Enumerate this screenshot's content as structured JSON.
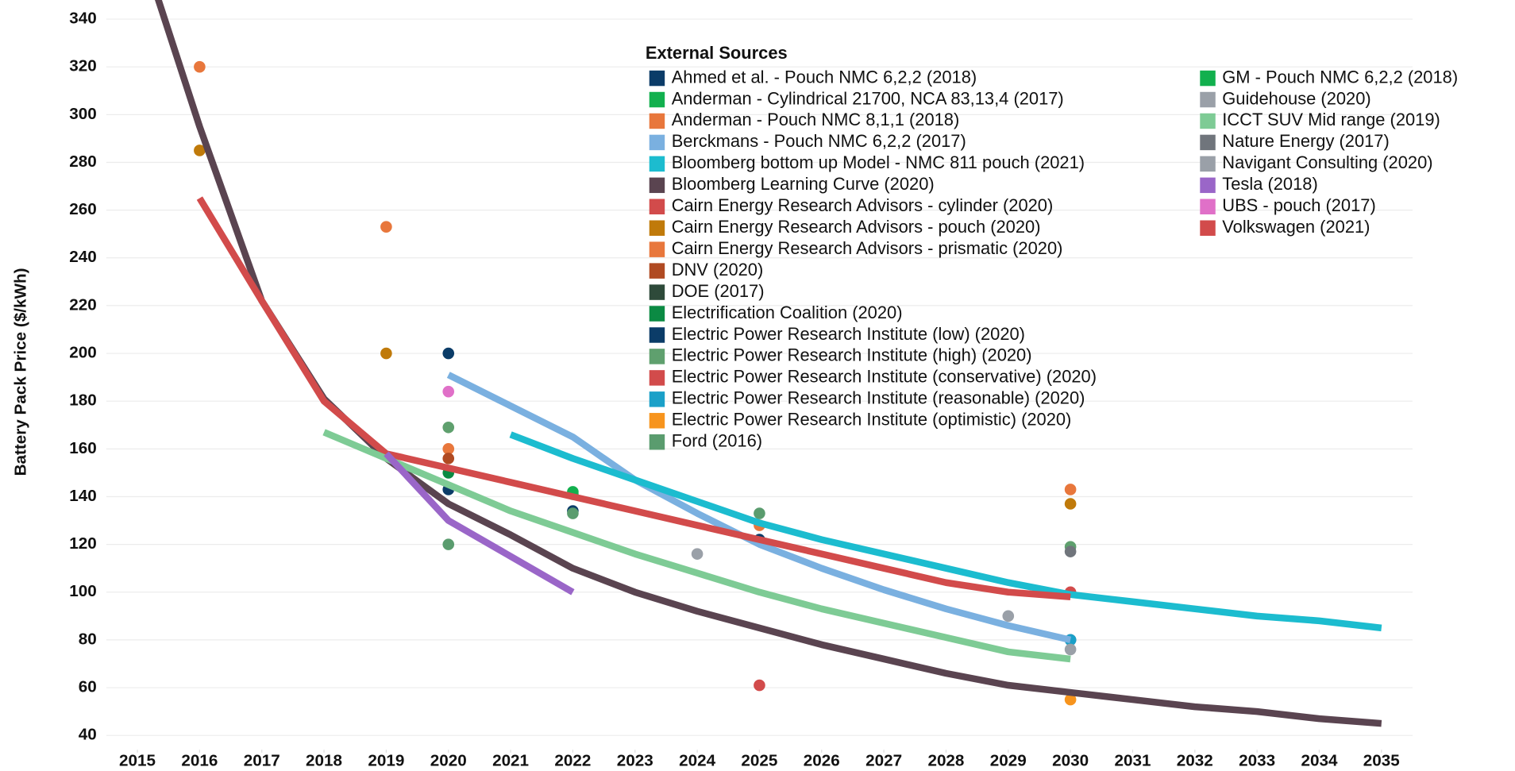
{
  "chart_data": {
    "type": "line",
    "ylabel": "Battery Pack Price ($/kWh)",
    "legend_title": "External Sources",
    "xlim": [
      2014.5,
      2035.5
    ],
    "xticks": [
      2015,
      2016,
      2017,
      2018,
      2019,
      2020,
      2021,
      2022,
      2023,
      2024,
      2025,
      2026,
      2027,
      2028,
      2029,
      2030,
      2031,
      2032,
      2033,
      2034,
      2035
    ],
    "ylim": [
      34,
      348
    ],
    "yticks": [
      40,
      60,
      80,
      100,
      120,
      140,
      160,
      180,
      200,
      220,
      240,
      260,
      280,
      300,
      320,
      340
    ],
    "grid": true,
    "series": [
      {
        "name": "Ahmed et al. - Pouch NMC 6,2,2 (2018)",
        "color": "#0b3c68",
        "type": "scatter",
        "x": [
          2020,
          2022
        ],
        "values": [
          200,
          134
        ]
      },
      {
        "name": "Anderman - Cylindrical 21700, NCA 83,13,4 (2017)",
        "color": "#12b04e",
        "type": "scatter",
        "x": [
          2022
        ],
        "values": [
          142
        ]
      },
      {
        "name": "Anderman - Pouch NMC 8,1,1 (2018)",
        "color": "#e8773c",
        "type": "scatter",
        "x": [
          2016,
          2020
        ],
        "values": [
          320,
          160
        ]
      },
      {
        "name": "Berckmans - Pouch NMC 6,2,2 (2017)",
        "color": "#7ab0e0",
        "type": "line",
        "x": [
          2020,
          2021,
          2022,
          2023,
          2024,
          2025,
          2026,
          2027,
          2028,
          2029,
          2030
        ],
        "values": [
          191,
          178,
          165,
          147,
          133,
          120,
          110,
          101,
          93,
          86,
          80
        ]
      },
      {
        "name": "Bloomberg bottom up Model - NMC 811 pouch (2021)",
        "color": "#1cbccf",
        "type": "line",
        "x": [
          2021,
          2022,
          2023,
          2024,
          2025,
          2026,
          2027,
          2028,
          2029,
          2030,
          2031,
          2032,
          2033,
          2034,
          2035
        ],
        "values": [
          166,
          156,
          147,
          138,
          129,
          122,
          116,
          110,
          104,
          99,
          96,
          93,
          90,
          88,
          85
        ]
      },
      {
        "name": "Bloomberg Learning Curve (2020)",
        "color": "#5a4450",
        "type": "line",
        "x": [
          2015,
          2016,
          2017,
          2018,
          2019,
          2020,
          2021,
          2022,
          2023,
          2024,
          2025,
          2026,
          2027,
          2028,
          2029,
          2030,
          2031,
          2032,
          2033,
          2034,
          2035
        ],
        "values": [
          375,
          295,
          222,
          181,
          156,
          137,
          124,
          110,
          100,
          92,
          85,
          78,
          72,
          66,
          61,
          58,
          55,
          52,
          50,
          47,
          45
        ]
      },
      {
        "name": "Cairn Energy Research Advisors - cylinder (2020)",
        "color": "#d24b4b",
        "type": "line",
        "x": [
          2016,
          2017,
          2018,
          2019,
          2020,
          2021,
          2022,
          2023,
          2024,
          2025,
          2026,
          2027,
          2028,
          2029,
          2030
        ],
        "values": [
          265,
          222,
          180,
          158,
          152,
          146,
          140,
          134,
          128,
          122,
          116,
          110,
          104,
          100,
          98
        ]
      },
      {
        "name": "Cairn Energy Research Advisors - pouch (2020)",
        "color": "#c07a0a",
        "type": "scatter",
        "x": [
          2016,
          2019,
          2030
        ],
        "values": [
          285,
          200,
          137
        ]
      },
      {
        "name": "Cairn Energy Research Advisors - prismatic (2020)",
        "color": "#e8773c",
        "type": "scatter",
        "x": [
          2019,
          2025,
          2030
        ],
        "values": [
          253,
          128,
          143
        ]
      },
      {
        "name": "DNV  (2020)",
        "color": "#b04a22",
        "type": "scatter",
        "x": [
          2020
        ],
        "values": [
          156
        ]
      },
      {
        "name": "DOE (2017)",
        "color": "#2e4a3a",
        "type": "scatter",
        "x": [],
        "values": []
      },
      {
        "name": "Electrification Coalition (2020)",
        "color": "#0b8a43",
        "type": "scatter",
        "x": [
          2020
        ],
        "values": [
          150
        ]
      },
      {
        "name": "Electric Power Research Institute (low) (2020)",
        "color": "#0b3c68",
        "type": "scatter",
        "x": [
          2020,
          2025,
          2030
        ],
        "values": [
          143,
          122,
          80
        ]
      },
      {
        "name": "Electric Power Research Institute (high) (2020)",
        "color": "#5fa06e",
        "type": "scatter",
        "x": [
          2020,
          2030
        ],
        "values": [
          169,
          119
        ]
      },
      {
        "name": "Electric Power Research Institute (conservative) (2020)",
        "color": "#d24b4b",
        "type": "scatter",
        "x": [
          2025
        ],
        "values": [
          61
        ]
      },
      {
        "name": "Electric Power Research Institute (reasonable) (2020)",
        "color": "#1aa0c8",
        "type": "scatter",
        "x": [
          2030
        ],
        "values": [
          80
        ]
      },
      {
        "name": "Electric Power Research Institute (optimistic) (2020)",
        "color": "#f7941d",
        "type": "scatter",
        "x": [
          2030
        ],
        "values": [
          55
        ]
      },
      {
        "name": "Ford (2016)",
        "color": "#5a9c6e",
        "type": "scatter",
        "x": [
          2020,
          2022,
          2025
        ],
        "values": [
          120,
          133,
          133
        ]
      },
      {
        "name": "GM - Pouch NMC 6,2,2  (2018)",
        "color": "#12b04e",
        "type": "scatter",
        "x": [
          2022
        ],
        "values": [
          141
        ]
      },
      {
        "name": "Guidehouse (2020)",
        "color": "#9aa0a8",
        "type": "scatter",
        "x": [
          2024
        ],
        "values": [
          116
        ]
      },
      {
        "name": "ICCT SUV Mid range (2019)",
        "color": "#7ecb95",
        "type": "line",
        "x": [
          2018,
          2019,
          2020,
          2021,
          2022,
          2023,
          2024,
          2025,
          2026,
          2027,
          2028,
          2029,
          2030
        ],
        "values": [
          167,
          156,
          145,
          134,
          125,
          116,
          108,
          100,
          93,
          87,
          81,
          75,
          72
        ]
      },
      {
        "name": "Nature Energy (2017)",
        "color": "#70757c",
        "type": "scatter",
        "x": [
          2030
        ],
        "values": [
          117
        ]
      },
      {
        "name": "Navigant Consulting (2020)",
        "color": "#9aa0a8",
        "type": "scatter",
        "x": [
          2029,
          2030
        ],
        "values": [
          90,
          76
        ]
      },
      {
        "name": "Tesla (2018)",
        "color": "#9a66c8",
        "type": "line",
        "x": [
          2019,
          2020,
          2021,
          2022
        ],
        "values": [
          158,
          130,
          115,
          100
        ]
      },
      {
        "name": "UBS - pouch (2017)",
        "color": "#e070c8",
        "type": "scatter",
        "x": [
          2020
        ],
        "values": [
          184
        ]
      },
      {
        "name": "Volkswagen (2021)",
        "color": "#d24b4b",
        "type": "scatter",
        "x": [
          2030
        ],
        "values": [
          100
        ]
      }
    ]
  }
}
